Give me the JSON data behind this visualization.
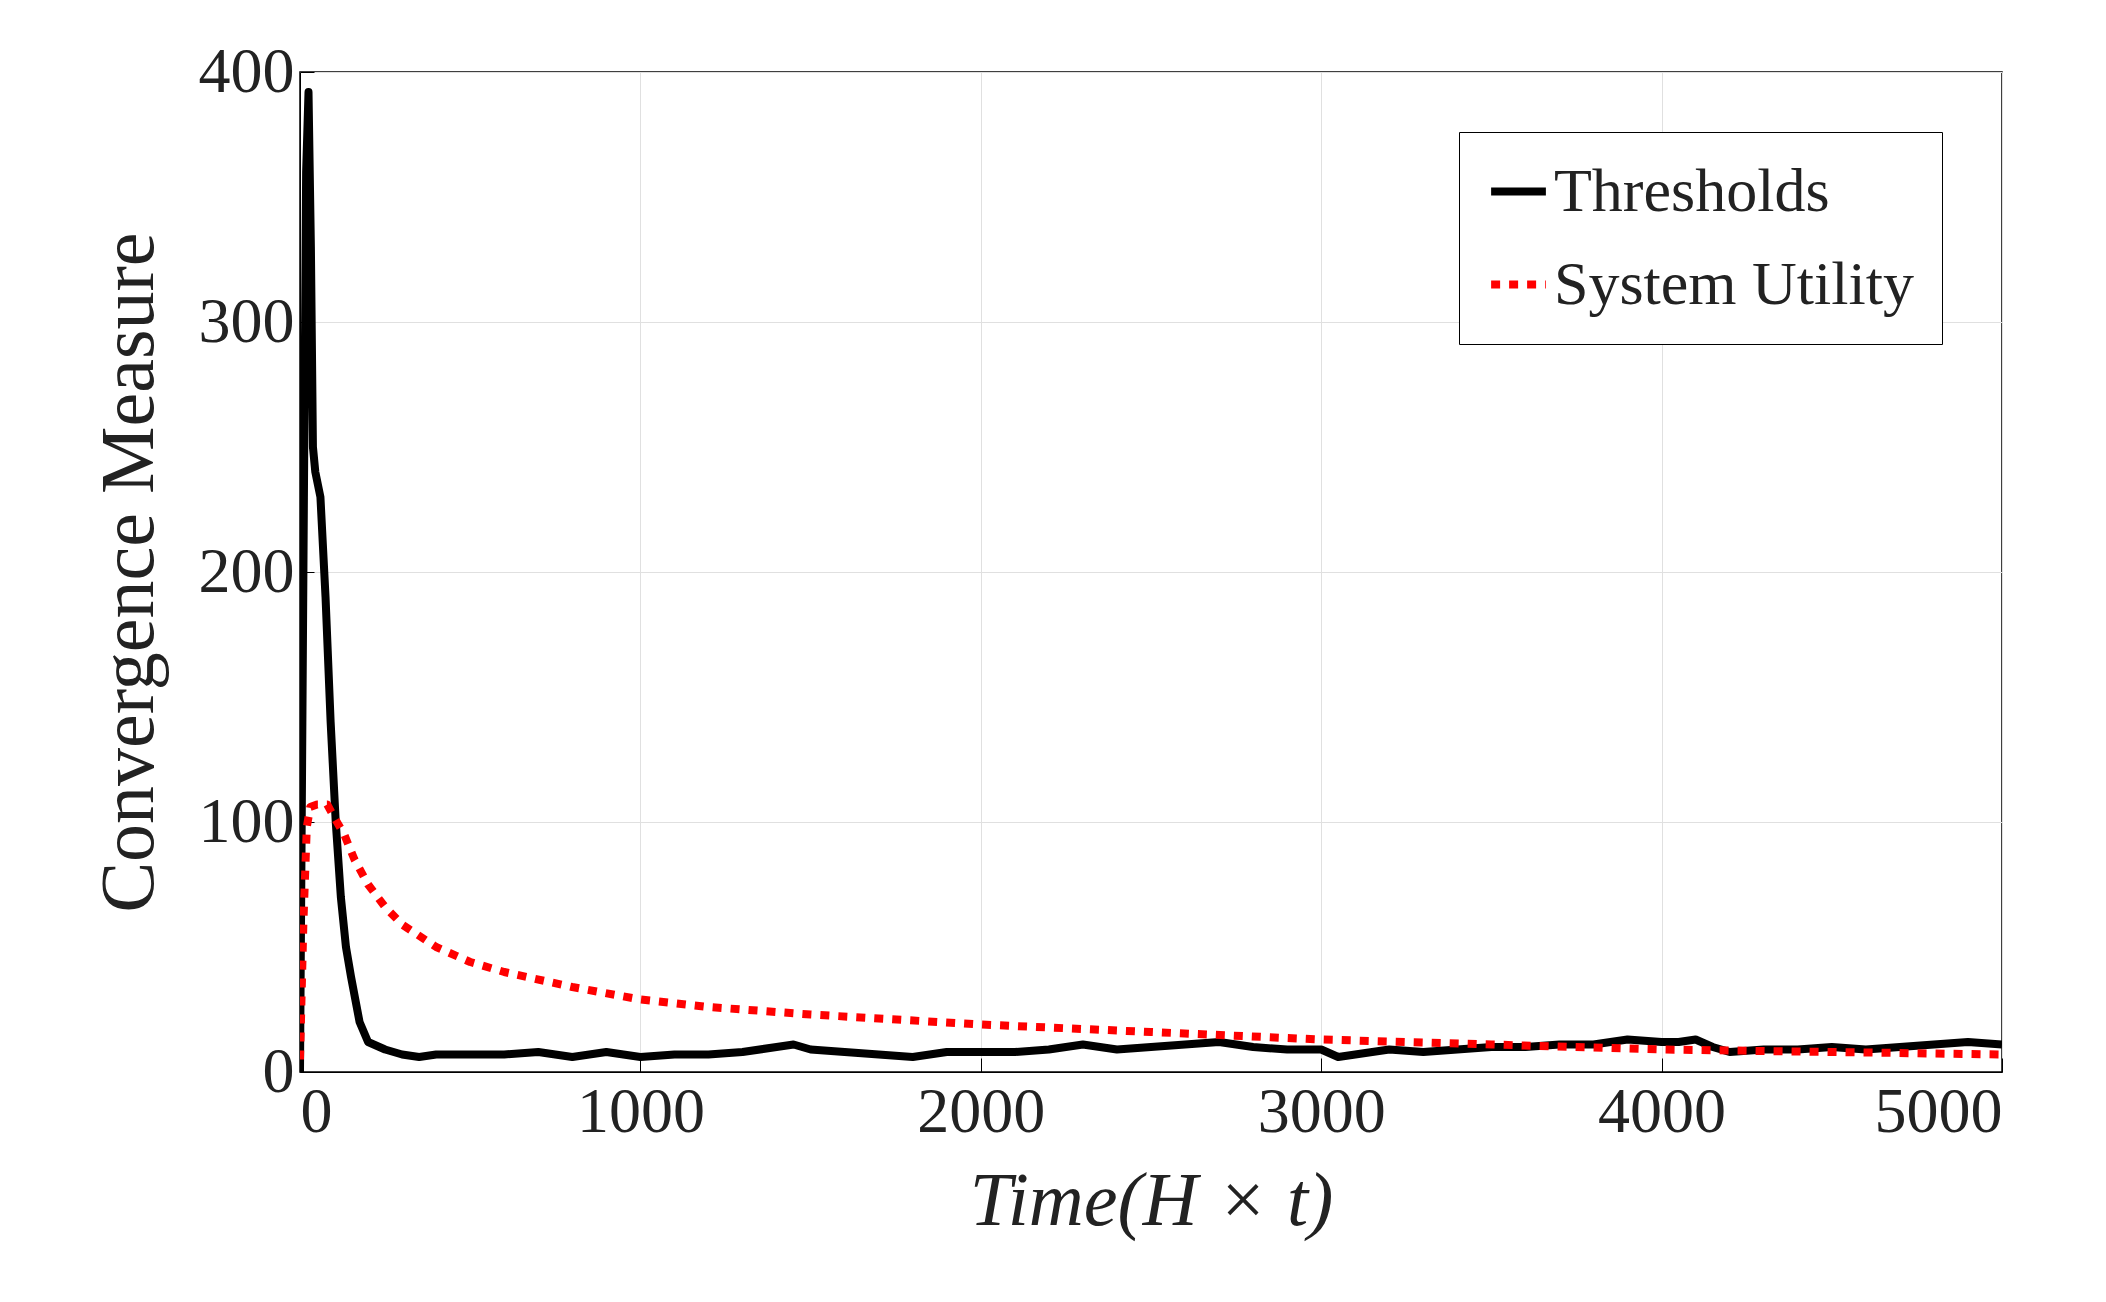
{
  "chart_data": {
    "type": "line",
    "xlabel": "Time(H × t)",
    "ylabel": "Convergence Measure",
    "xlim": [
      0,
      5000
    ],
    "ylim": [
      0,
      400
    ],
    "xticks": [
      0,
      1000,
      2000,
      3000,
      4000,
      5000
    ],
    "yticks": [
      0,
      100,
      200,
      300,
      400
    ],
    "grid": true,
    "legend": "top right",
    "marker": "none",
    "series": [
      {
        "name": "Thresholds",
        "color": "#000000",
        "line_style": "solid",
        "x": [
          0,
          10,
          18,
          25,
          32,
          38,
          45,
          60,
          75,
          90,
          105,
          120,
          135,
          150,
          175,
          200,
          250,
          300,
          350,
          400,
          500,
          600,
          700,
          800,
          900,
          1000,
          1100,
          1200,
          1300,
          1400,
          1450,
          1500,
          1600,
          1700,
          1800,
          1900,
          2000,
          2100,
          2200,
          2300,
          2400,
          2500,
          2600,
          2700,
          2800,
          2900,
          3000,
          3050,
          3100,
          3200,
          3300,
          3400,
          3500,
          3600,
          3700,
          3800,
          3900,
          4000,
          4050,
          4100,
          4150,
          4200,
          4300,
          4400,
          4500,
          4600,
          4700,
          4800,
          4900,
          5000
        ],
        "values": [
          0,
          200,
          360,
          392,
          330,
          250,
          240,
          230,
          190,
          140,
          100,
          70,
          50,
          38,
          20,
          12,
          9,
          7,
          6,
          7,
          7,
          7,
          8,
          6,
          8,
          6,
          7,
          7,
          8,
          10,
          11,
          9,
          8,
          7,
          6,
          8,
          8,
          8,
          9,
          11,
          9,
          10,
          11,
          12,
          10,
          9,
          9,
          6,
          7,
          9,
          8,
          9,
          10,
          10,
          11,
          11,
          13,
          12,
          12,
          13,
          10,
          8,
          9,
          9,
          10,
          9,
          10,
          11,
          12,
          11
        ]
      },
      {
        "name": "System Utility",
        "color": "#ff0000",
        "line_style": "dotted",
        "x": [
          0,
          10,
          20,
          30,
          50,
          80,
          100,
          130,
          160,
          200,
          250,
          300,
          400,
          500,
          600,
          800,
          1000,
          1200,
          1500,
          2000,
          2500,
          3000,
          3500,
          4000,
          4500,
          5000
        ],
        "values": [
          5,
          60,
          98,
          106,
          107,
          107,
          102,
          95,
          85,
          75,
          66,
          59,
          50,
          44,
          40,
          34,
          29,
          26,
          23,
          19,
          16,
          13,
          11,
          9,
          8,
          7
        ]
      }
    ]
  }
}
